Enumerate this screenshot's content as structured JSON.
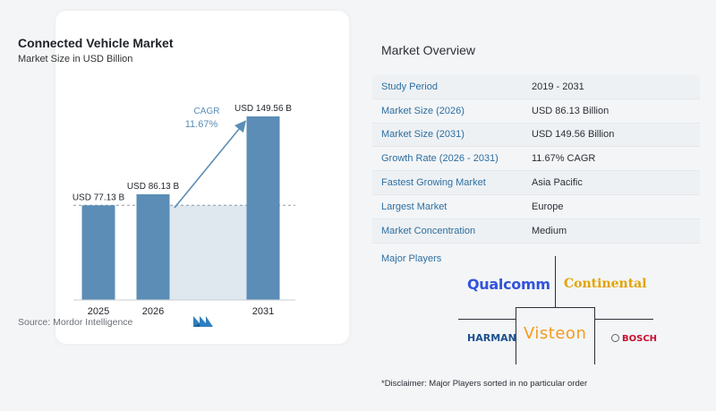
{
  "chart_card": {
    "title": "Connected Vehicle Market",
    "subtitle": "Market Size in USD Billion",
    "source": "Source: Mordor Intelligence",
    "cagr_label": "CAGR",
    "cagr_value": "11.67%"
  },
  "chart_data": {
    "type": "bar",
    "categories": [
      "2025",
      "2026",
      "2031"
    ],
    "values": [
      77.13,
      86.13,
      149.56
    ],
    "data_labels": [
      "USD 77.13 B",
      "USD 86.13 B",
      "USD 149.56 B"
    ],
    "title": "Connected Vehicle Market",
    "subtitle": "Market Size in USD Billion",
    "xlabel": "",
    "ylabel": "",
    "ylim": [
      0,
      149.56
    ],
    "grid": false,
    "bar_color": "#5b8db6",
    "band_color": "#dfe7ef",
    "annotation": {
      "text": "CAGR 11.67%",
      "from": "2026",
      "to": "2031"
    }
  },
  "overview": {
    "title": "Market Overview",
    "rows": [
      {
        "label": "Study Period",
        "value": "2019 - 2031"
      },
      {
        "label": "Market Size (2026)",
        "value": "USD 86.13 Billion"
      },
      {
        "label": "Market Size (2031)",
        "value": "USD 149.56 Billion"
      },
      {
        "label": "Growth Rate (2026 - 2031)",
        "value": "11.67% CAGR"
      },
      {
        "label": "Fastest Growing Market",
        "value": "Asia Pacific"
      },
      {
        "label": "Largest Market",
        "value": "Europe"
      },
      {
        "label": "Market Concentration",
        "value": "Medium"
      }
    ]
  },
  "players": {
    "title": "Major Players",
    "logos": [
      "Qualcomm",
      "Continental",
      "HARMAN",
      "Visteon",
      "BOSCH"
    ]
  },
  "disclaimer": "*Disclaimer: Major Players sorted in no particular order",
  "colors": {
    "accent": "#2d6fa0",
    "bar": "#5b8db6",
    "band": "#dfe7ef"
  }
}
